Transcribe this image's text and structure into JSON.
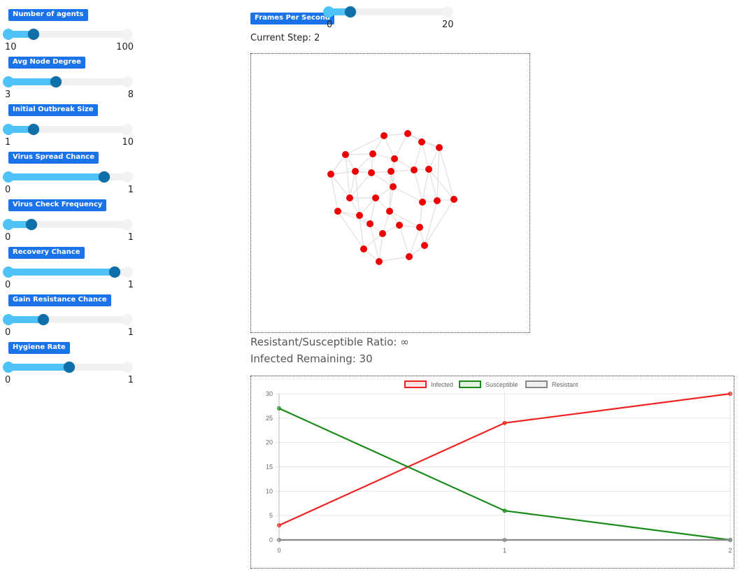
{
  "sliders": [
    {
      "label": "Number of agents",
      "min": "10",
      "max": "100",
      "fraction": 0.21
    },
    {
      "label": "Avg Node Degree",
      "min": "3",
      "max": "8",
      "fraction": 0.4
    },
    {
      "label": "Initial Outbreak Size",
      "min": "1",
      "max": "10",
      "fraction": 0.21
    },
    {
      "label": "Virus Spread Chance",
      "min": "0",
      "max": "1",
      "fraction": 0.81
    },
    {
      "label": "Virus Check Frequency",
      "min": "0",
      "max": "1",
      "fraction": 0.19
    },
    {
      "label": "Recovery Chance",
      "min": "0",
      "max": "1",
      "fraction": 0.9
    },
    {
      "label": "Gain Resistance Chance",
      "min": "0",
      "max": "1",
      "fraction": 0.29
    },
    {
      "label": "Hygiene Rate",
      "min": "0",
      "max": "1",
      "fraction": 0.51
    }
  ],
  "fps": {
    "label": "Frames Per Second",
    "min": "0",
    "max": "20",
    "fraction": 0.18
  },
  "current_step": "Current Step: 2",
  "ratio_text": "Resistant/Susceptible Ratio: ∞",
  "infected_text": "Infected Remaining: 30",
  "network": {
    "node_color": "#ee0000",
    "edge_color": "#e4e4e4"
  },
  "chart_data": {
    "type": "line",
    "x": [
      0,
      1,
      2
    ],
    "categories": [
      "0",
      "1",
      "2"
    ],
    "ylim": [
      0,
      30
    ],
    "yticks": [
      "0",
      "5",
      "10",
      "15",
      "20",
      "25",
      "30"
    ],
    "legend_position": "top",
    "grid": true,
    "series": [
      {
        "name": "Infected",
        "color": "#ee2222",
        "values": [
          3,
          24,
          30
        ]
      },
      {
        "name": "Susceptible",
        "color": "#1a8a1a",
        "values": [
          27,
          6,
          0
        ]
      },
      {
        "name": "Resistant",
        "color": "#888888",
        "values": [
          0,
          0,
          0
        ]
      }
    ]
  }
}
